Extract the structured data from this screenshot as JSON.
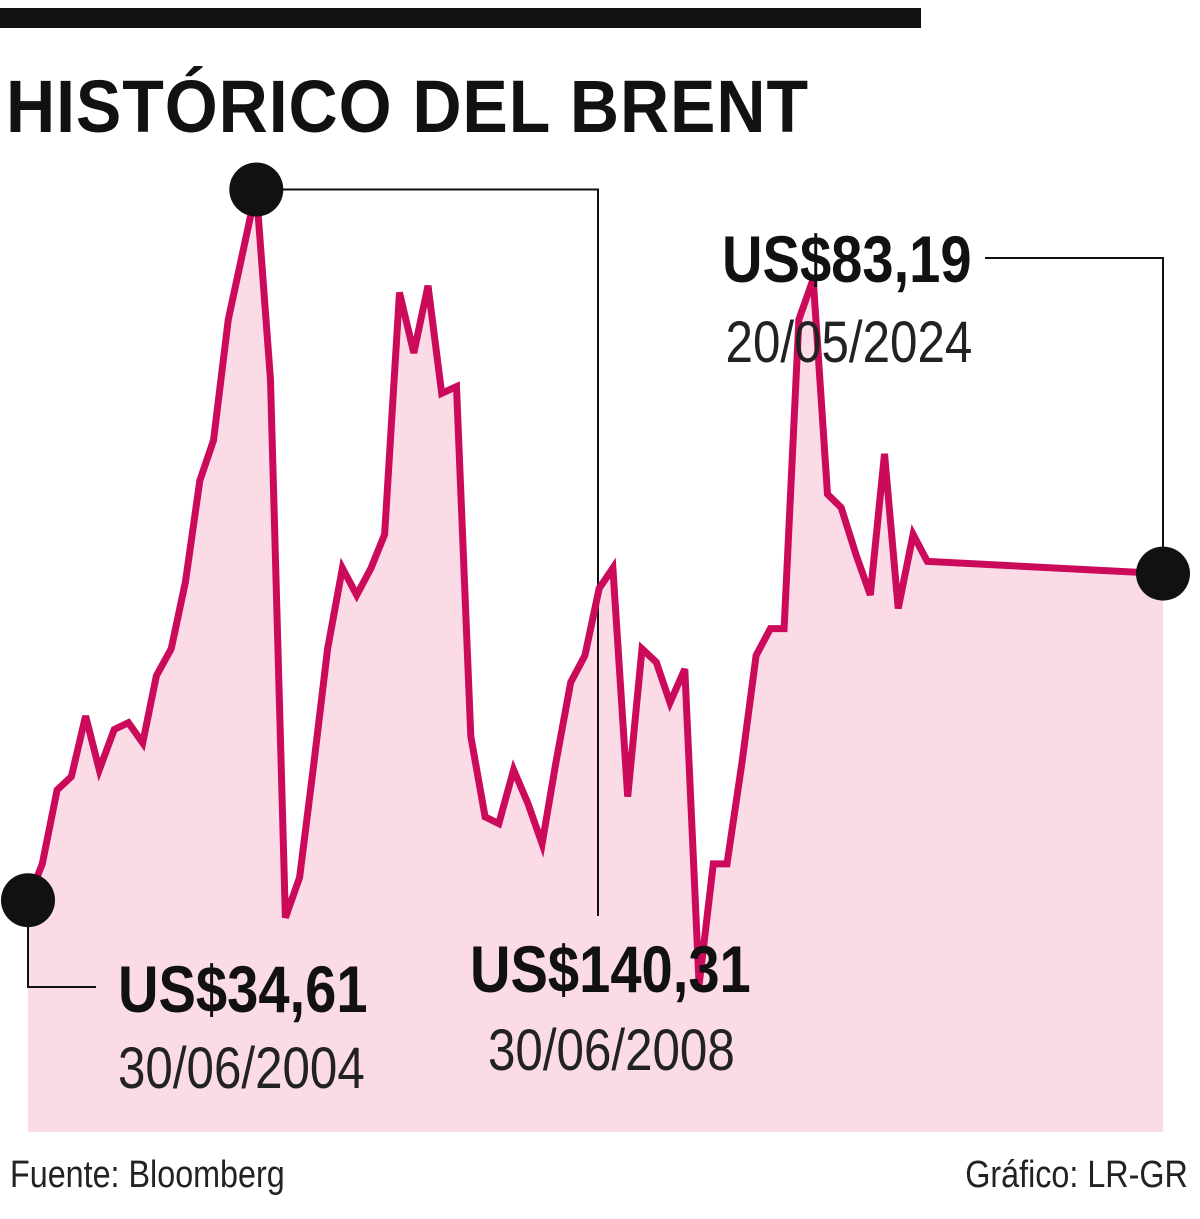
{
  "title": "HISTÓRICO DEL BRENT",
  "source": "Fuente: Bloomberg",
  "credit": "Gráfico: LR-GR",
  "colors": {
    "line": "#cc0a5c",
    "fill": "#fadbe6",
    "marker": "#111111",
    "text": "#111111"
  },
  "annotations": {
    "start": {
      "value": "US$34,61",
      "date": "30/06/2004"
    },
    "peak": {
      "value": "US$140,31",
      "date": "30/06/2008"
    },
    "last": {
      "value": "US$83,19",
      "date": "20/05/2024"
    }
  },
  "chart_data": {
    "type": "area",
    "title": "HISTÓRICO DEL BRENT",
    "xlabel": "",
    "ylabel": "",
    "unit": "US$",
    "ylim": [
      15,
      145
    ],
    "x_range": [
      "2004-06-30",
      "2024-05-20"
    ],
    "grid": false,
    "legend": "none",
    "highlighted_points": [
      {
        "date": "2004-06-30",
        "value": 34.61
      },
      {
        "date": "2008-06-30",
        "value": 140.31
      },
      {
        "date": "2024-05-20",
        "value": 83.19
      }
    ],
    "series": [
      {
        "values": [
          [
            2004.49,
            34.61
          ],
          [
            2004.74,
            40.0
          ],
          [
            2005.0,
            51.0
          ],
          [
            2005.25,
            53.0
          ],
          [
            2005.5,
            62.0
          ],
          [
            2005.74,
            54.0
          ],
          [
            2006.0,
            60.0
          ],
          [
            2006.25,
            61.0
          ],
          [
            2006.5,
            58.0
          ],
          [
            2006.74,
            68.0
          ],
          [
            2007.0,
            72.0
          ],
          [
            2007.25,
            82.0
          ],
          [
            2007.5,
            97.0
          ],
          [
            2007.74,
            103.0
          ],
          [
            2008.0,
            121.0
          ],
          [
            2008.49,
            140.31
          ],
          [
            2008.74,
            112.0
          ],
          [
            2009.0,
            32.0
          ],
          [
            2009.25,
            38.0
          ],
          [
            2009.5,
            55.0
          ],
          [
            2009.74,
            72.0
          ],
          [
            2010.0,
            84.0
          ],
          [
            2010.25,
            80.0
          ],
          [
            2010.5,
            84.0
          ],
          [
            2010.74,
            89.0
          ],
          [
            2011.0,
            125.0
          ],
          [
            2011.25,
            116.0
          ],
          [
            2011.5,
            126.0
          ],
          [
            2011.74,
            110.0
          ],
          [
            2012.0,
            111.0
          ],
          [
            2012.25,
            59.0
          ],
          [
            2012.5,
            47.0
          ],
          [
            2012.74,
            46.0
          ],
          [
            2013.0,
            54.0
          ],
          [
            2013.25,
            49.0
          ],
          [
            2013.5,
            43.0
          ],
          [
            2013.74,
            55.0
          ],
          [
            2014.0,
            67.0
          ],
          [
            2014.25,
            71.0
          ],
          [
            2014.5,
            81.0
          ],
          [
            2014.74,
            84.0
          ],
          [
            2015.0,
            50.0
          ],
          [
            2015.25,
            72.0
          ],
          [
            2015.5,
            70.0
          ],
          [
            2015.74,
            64.0
          ],
          [
            2016.0,
            69.0
          ],
          [
            2016.25,
            22.0
          ],
          [
            2016.5,
            40.0
          ],
          [
            2016.74,
            40.0
          ],
          [
            2017.0,
            55.0
          ],
          [
            2017.25,
            71.0
          ],
          [
            2017.5,
            75.0
          ],
          [
            2017.74,
            75.0
          ],
          [
            2018.0,
            121.0
          ],
          [
            2018.25,
            127.0
          ],
          [
            2018.5,
            95.0
          ],
          [
            2018.74,
            93.0
          ],
          [
            2019.0,
            86.0
          ],
          [
            2019.25,
            80.0
          ],
          [
            2019.5,
            101.0
          ],
          [
            2019.74,
            78.0
          ],
          [
            2020.0,
            89.0
          ],
          [
            2020.25,
            85.0
          ],
          [
            2024.38,
            83.19
          ]
        ]
      }
    ]
  }
}
